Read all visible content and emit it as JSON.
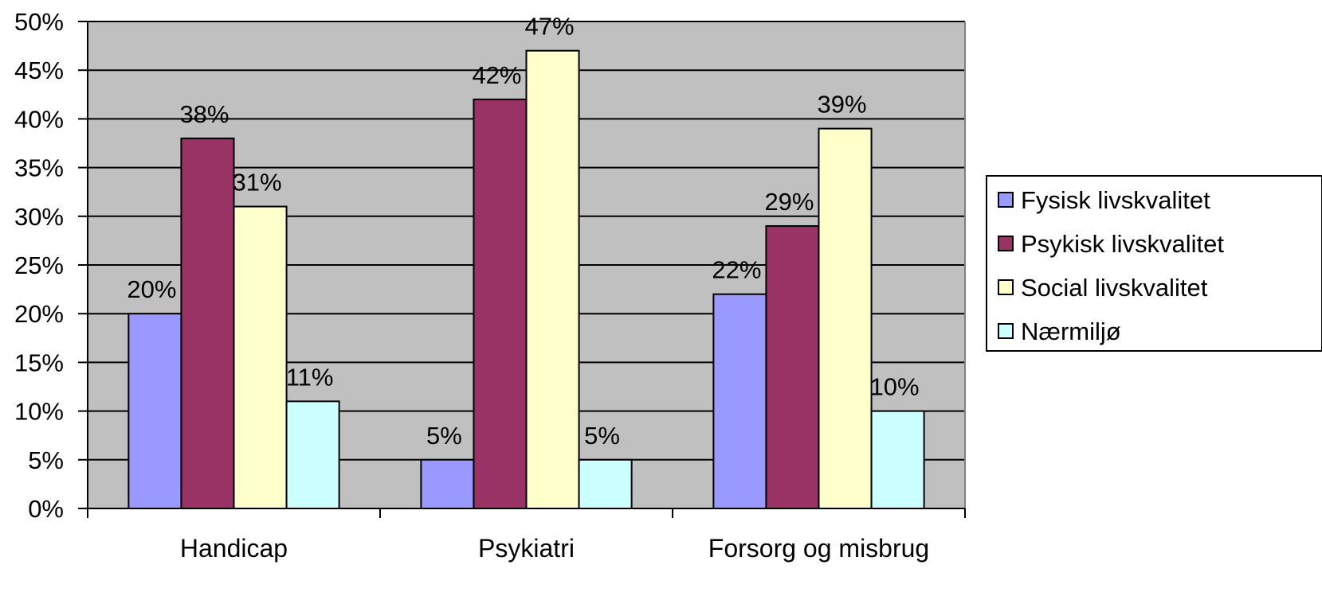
{
  "chart_data": {
    "type": "bar",
    "categories": [
      "Handicap",
      "Psykiatri",
      "Forsorg og misbrug"
    ],
    "series": [
      {
        "name": "Fysisk livskvalitet",
        "values": [
          20,
          5,
          22
        ],
        "labels": [
          "20%",
          "5%",
          "22%"
        ]
      },
      {
        "name": "Psykisk livskvalitet",
        "values": [
          38,
          42,
          29
        ],
        "labels": [
          "38%",
          "42%",
          "29%"
        ]
      },
      {
        "name": "Social livskvalitet",
        "values": [
          31,
          47,
          39
        ],
        "labels": [
          "31%",
          "47%",
          "39%"
        ]
      },
      {
        "name": "Nærmiljø",
        "values": [
          11,
          5,
          10
        ],
        "labels": [
          "11%",
          "5%",
          "10%"
        ]
      }
    ],
    "colors": [
      "#9999FF",
      "#993366",
      "#FFFFCC",
      "#CCFFFF"
    ],
    "plot_background": "#C0C0C0",
    "ylim": [
      0,
      50
    ],
    "yticks": [
      "0%",
      "5%",
      "10%",
      "15%",
      "20%",
      "25%",
      "30%",
      "35%",
      "40%",
      "45%",
      "50%"
    ],
    "grid": true,
    "legend_position": "right",
    "title": "",
    "xlabel": "",
    "ylabel": ""
  }
}
